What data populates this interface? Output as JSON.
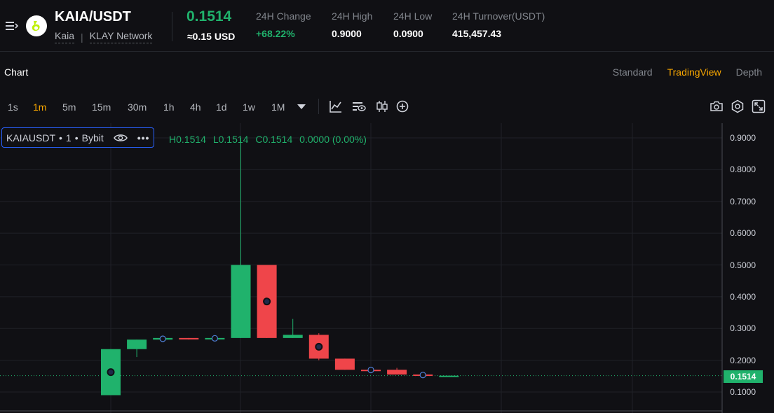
{
  "header": {
    "pair": "KAIA/USDT",
    "coin_name": "Kaia",
    "network": "KLAY Network",
    "last_price": "0.1514",
    "usd_price": "≈0.15 USD",
    "stats": [
      {
        "label": "24H Change",
        "value": "+68.22%"
      },
      {
        "label": "24H High",
        "value": "0.9000"
      },
      {
        "label": "24H Low",
        "value": "0.0900"
      },
      {
        "label": "24H Turnover(USDT)",
        "value": "415,457.43"
      }
    ]
  },
  "chart_header": {
    "title": "Chart",
    "views": [
      "Standard",
      "TradingView",
      "Depth"
    ],
    "active_view": "TradingView"
  },
  "toolbar": {
    "intervals": [
      "1s",
      "1m",
      "5m",
      "15m",
      "30m",
      "1h",
      "4h",
      "1d",
      "1w",
      "1M"
    ],
    "active_interval": "1m"
  },
  "legend": {
    "symbol": "KAIAUSDT",
    "interval": "1",
    "exchange": "Bybit",
    "high": "H0.1514",
    "low": "L0.1514",
    "close": "C0.1514",
    "change": "0.0000 (0.00%)"
  },
  "colors": {
    "up": "#20b26c",
    "down": "#ef454a",
    "accent": "#f7a600",
    "background": "#101014"
  },
  "chart_data": {
    "type": "candlestick",
    "y_axis_ticks": [
      "0.9000",
      "0.8000",
      "0.7000",
      "0.6000",
      "0.5000",
      "0.4000",
      "0.3000",
      "0.2000",
      "0.1000"
    ],
    "ylim": [
      0.08,
      0.94
    ],
    "current_price_label": "0.1514",
    "candles": [
      {
        "open": 0.09,
        "high": 0.235,
        "low": 0.09,
        "close": 0.235,
        "marker": "dot"
      },
      {
        "open": 0.235,
        "high": 0.265,
        "low": 0.21,
        "close": 0.265
      },
      {
        "open": 0.265,
        "high": 0.27,
        "low": 0.265,
        "close": 0.27,
        "marker": "ring"
      },
      {
        "open": 0.27,
        "high": 0.27,
        "low": 0.265,
        "close": 0.268
      },
      {
        "open": 0.268,
        "high": 0.27,
        "low": 0.268,
        "close": 0.27,
        "marker": "ring"
      },
      {
        "open": 0.27,
        "high": 0.9,
        "low": 0.27,
        "close": 0.5
      },
      {
        "open": 0.5,
        "high": 0.5,
        "low": 0.27,
        "close": 0.27,
        "marker": "dot"
      },
      {
        "open": 0.27,
        "high": 0.33,
        "low": 0.27,
        "close": 0.28
      },
      {
        "open": 0.28,
        "high": 0.285,
        "low": 0.2,
        "close": 0.205,
        "marker": "dot"
      },
      {
        "open": 0.205,
        "high": 0.205,
        "low": 0.17,
        "close": 0.17
      },
      {
        "open": 0.17,
        "high": 0.17,
        "low": 0.168,
        "close": 0.169,
        "marker": "ring"
      },
      {
        "open": 0.17,
        "high": 0.176,
        "low": 0.155,
        "close": 0.155
      },
      {
        "open": 0.155,
        "high": 0.155,
        "low": 0.15,
        "close": 0.152,
        "marker": "ring"
      },
      {
        "open": 0.1514,
        "high": 0.1514,
        "low": 0.1514,
        "close": 0.1514
      }
    ]
  }
}
